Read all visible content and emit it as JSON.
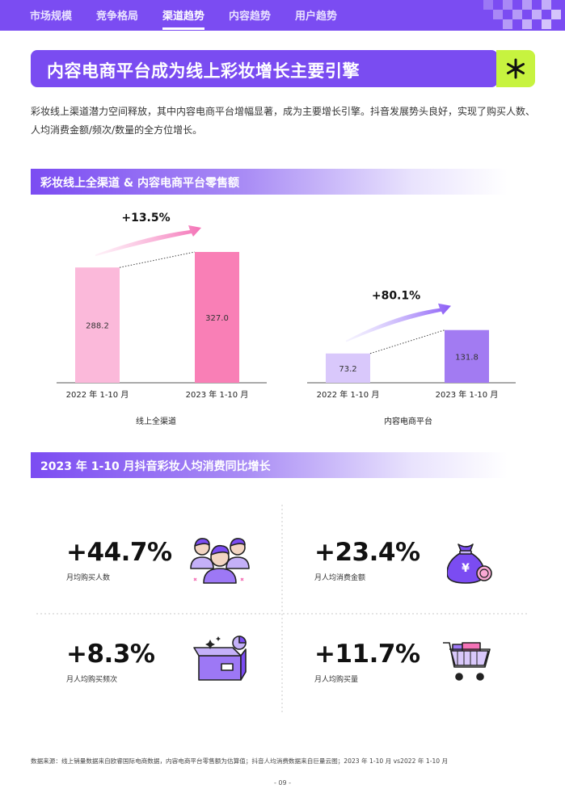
{
  "nav": {
    "tabs": [
      {
        "label": "市场规模"
      },
      {
        "label": "竞争格局"
      },
      {
        "label": "渠道趋势"
      },
      {
        "label": "内容趋势"
      },
      {
        "label": "用户趋势"
      }
    ],
    "active_index": 2
  },
  "title": "内容电商平台成为线上彩妆增长主要引擎",
  "intro": "彩妆线上渠道潜力空间释放，其中内容电商平台增幅显著，成为主要增长引擎。抖音发展势头良好，实现了购买人数、人均消费金额/频次/数量的全方位增长。",
  "section1": {
    "label": "彩妆线上全渠道 & 内容电商平台零售额"
  },
  "section2": {
    "label": "2023 年 1-10 月抖音彩妆人均消费同比增长"
  },
  "chart_data": [
    {
      "type": "bar",
      "title": "线上全渠道",
      "categories": [
        "2022 年 1-10 月",
        "2023 年 1-10 月"
      ],
      "values": [
        288.2,
        327.0
      ],
      "value_labels": [
        "288.2",
        "327.0"
      ],
      "growth": "+13.5%",
      "colors": [
        "#fbb9da",
        "#f97fb6"
      ],
      "arrow_color": "#f472b6"
    },
    {
      "type": "bar",
      "title": "内容电商平台",
      "categories": [
        "2022 年 1-10 月",
        "2023 年 1-10 月"
      ],
      "values": [
        73.2,
        131.8
      ],
      "value_labels": [
        "73.2",
        "131.8"
      ],
      "growth": "+80.1%",
      "colors": [
        "#d9c8fb",
        "#a27bf2"
      ],
      "arrow_color": "#9a6cf0"
    }
  ],
  "stats": [
    {
      "value": "+44.7%",
      "label": "月均购买人数",
      "icon": "people-group-icon"
    },
    {
      "value": "+23.4%",
      "label": "月人均消费金额",
      "icon": "money-bag-icon"
    },
    {
      "value": "+8.3%",
      "label": "月人均购买频次",
      "icon": "open-box-icon"
    },
    {
      "value": "+11.7%",
      "label": "月人均购买量",
      "icon": "shopping-cart-icon"
    }
  ],
  "colors": {
    "brand_purple": "#7b4cf2",
    "lime": "#c7f33f",
    "pink": "#f97fb6"
  },
  "footnote": "数据来源：线上销量数据来自欧睿国际电商数据，内容电商平台零售额为估算值；抖音人均消费数据来自巨量云图；2023 年 1-10 月 vs2022 年 1-10 月",
  "page_number": "- 09 -"
}
